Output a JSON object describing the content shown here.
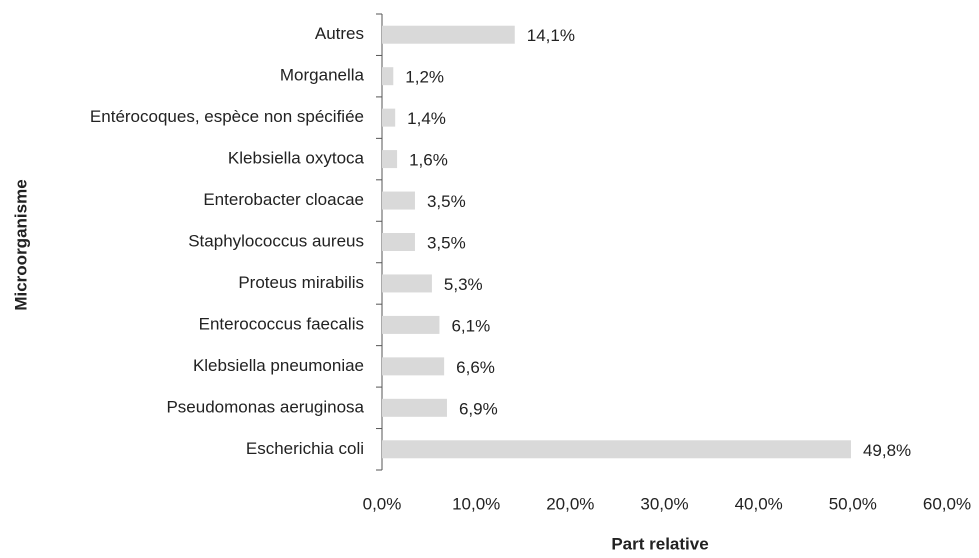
{
  "chart_data": {
    "type": "barh",
    "x_label": "Part relative",
    "y_label": "Microorganisme",
    "categories": [
      "Autres",
      "Morganella",
      "Entérocoques, espèce non spécifiée",
      "Klebsiella oxytoca",
      "Enterobacter cloacae",
      "Staphylococcus aureus",
      "Proteus mirabilis",
      "Enterococcus faecalis",
      "Klebsiella pneumoniae",
      "Pseudomonas aeruginosa",
      "Escherichia coli"
    ],
    "values": [
      14.1,
      1.2,
      1.4,
      1.6,
      3.5,
      3.5,
      5.3,
      6.1,
      6.6,
      6.9,
      49.8
    ],
    "value_labels": [
      "14,1%",
      "1,2%",
      "1,4%",
      "1,6%",
      "3,5%",
      "3,5%",
      "5,3%",
      "6,1%",
      "6,6%",
      "6,9%",
      "49,8%"
    ],
    "color": "#d9d9d9",
    "xlim": [
      0,
      60
    ],
    "xticks": [
      {
        "value": 0,
        "label": "0,0%"
      },
      {
        "value": 10,
        "label": "10,0%"
      },
      {
        "value": 20,
        "label": "20,0%"
      },
      {
        "value": 30,
        "label": "30,0%"
      },
      {
        "value": 40,
        "label": "40,0%"
      },
      {
        "value": 50,
        "label": "50,0%"
      },
      {
        "value": 60,
        "label": "60,0%"
      }
    ],
    "grid": false
  }
}
